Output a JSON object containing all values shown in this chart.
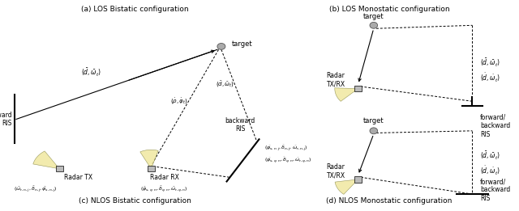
{
  "title_a": "(a) LOS Bistatic configuration",
  "title_b": "(b) LOS Monostatic configuration",
  "title_c": "(c) NLOS Bistatic configuration",
  "title_d": "(d) NLOS Monostatic configuration",
  "bg_color": "#ffffff"
}
